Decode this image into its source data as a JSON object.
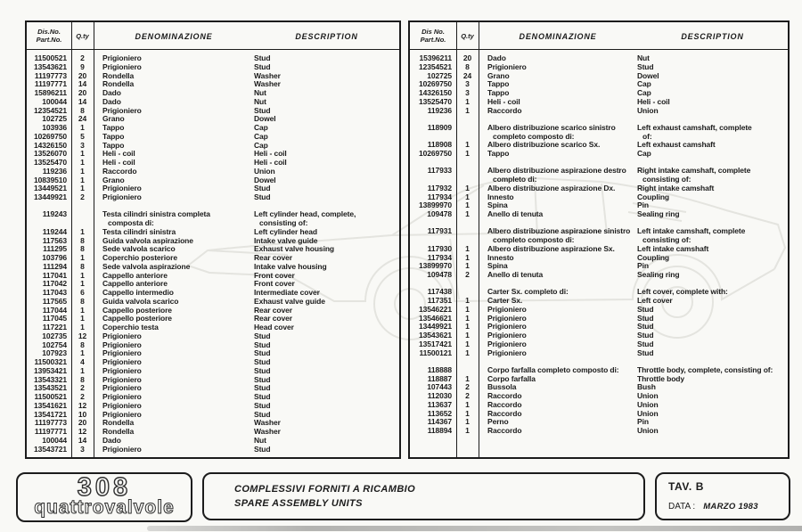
{
  "page": {
    "background": "#f9f9f6",
    "ink": "#1c1c1c",
    "watermark_color": "#e4e4df"
  },
  "tables": [
    {
      "id": "left",
      "header": {
        "no1": "Dis.No.",
        "no2": "Part.No.",
        "qty": "Q.ty",
        "den": "DENOMINAZIONE",
        "desc": "DESCRIPTION"
      },
      "rows": [
        {
          "t": "i",
          "no": "11500521",
          "q": "2",
          "d": "Prigioniero",
          "e": "Stud"
        },
        {
          "t": "i",
          "no": "13543621",
          "q": "9",
          "d": "Prigioniero",
          "e": "Stud"
        },
        {
          "t": "i",
          "no": "11197773",
          "q": "20",
          "d": "Rondella",
          "e": "Washer"
        },
        {
          "t": "i",
          "no": "11197771",
          "q": "14",
          "d": "Rondella",
          "e": "Washer"
        },
        {
          "t": "i",
          "no": "15896211",
          "q": "20",
          "d": "Dado",
          "e": "Nut"
        },
        {
          "t": "i",
          "no": "100044",
          "q": "14",
          "d": "Dado",
          "e": "Nut"
        },
        {
          "t": "i",
          "no": "12354521",
          "q": "8",
          "d": "Prigioniero",
          "e": "Stud"
        },
        {
          "t": "i",
          "no": "102725",
          "q": "24",
          "d": "Grano",
          "e": "Dowel"
        },
        {
          "t": "i",
          "no": "103936",
          "q": "1",
          "d": "Tappo",
          "e": "Cap"
        },
        {
          "t": "i",
          "no": "10269750",
          "q": "5",
          "d": "Tappo",
          "e": "Cap"
        },
        {
          "t": "i",
          "no": "14326150",
          "q": "3",
          "d": "Tappo",
          "e": "Cap"
        },
        {
          "t": "i",
          "no": "13526070",
          "q": "1",
          "d": "Heli - coil",
          "e": "Heli - coil"
        },
        {
          "t": "i",
          "no": "13525470",
          "q": "1",
          "d": "Heli - coil",
          "e": "Heli - coil"
        },
        {
          "t": "i",
          "no": "119236",
          "q": "1",
          "d": "Raccordo",
          "e": "Union"
        },
        {
          "t": "i",
          "no": "10839510",
          "q": "1",
          "d": "Grano",
          "e": "Dowel"
        },
        {
          "t": "i",
          "no": "13449521",
          "q": "1",
          "d": "Prigioniero",
          "e": "Stud"
        },
        {
          "t": "i",
          "no": "13449921",
          "q": "2",
          "d": "Prigioniero",
          "e": "Stud"
        },
        {
          "t": "s"
        },
        {
          "t": "g",
          "no": "119243",
          "d": [
            "Testa cilindri sinistra completa",
            "composta di:"
          ],
          "e": [
            "Left cylinder head, complete,",
            "consisting of:"
          ]
        },
        {
          "t": "i",
          "no": "119244",
          "q": "1",
          "d": "Testa cilindri sinistra",
          "e": "Left cylinder head"
        },
        {
          "t": "i",
          "no": "117563",
          "q": "8",
          "d": "Guida valvola aspirazione",
          "e": "Intake valve guide"
        },
        {
          "t": "i",
          "no": "111295",
          "q": "8",
          "d": "Sede valvola scarico",
          "e": "Exhaust valve housing"
        },
        {
          "t": "i",
          "no": "103796",
          "q": "1",
          "d": "Coperchio posteriore",
          "e": "Rear cover"
        },
        {
          "t": "i",
          "no": "111294",
          "q": "8",
          "d": "Sede valvola aspirazione",
          "e": "Intake valve housing"
        },
        {
          "t": "i",
          "no": "117041",
          "q": "1",
          "d": "Cappello anteriore",
          "e": "Front cover"
        },
        {
          "t": "i",
          "no": "117042",
          "q": "1",
          "d": "Cappello anteriore",
          "e": "Front cover"
        },
        {
          "t": "i",
          "no": "117043",
          "q": "6",
          "d": "Cappello intermedio",
          "e": "Intermediate cover"
        },
        {
          "t": "i",
          "no": "117565",
          "q": "8",
          "d": "Guida valvola scarico",
          "e": "Exhaust valve guide"
        },
        {
          "t": "i",
          "no": "117044",
          "q": "1",
          "d": "Cappello posteriore",
          "e": "Rear cover"
        },
        {
          "t": "i",
          "no": "117045",
          "q": "1",
          "d": "Cappello posteriore",
          "e": "Rear cover"
        },
        {
          "t": "i",
          "no": "117221",
          "q": "1",
          "d": "Coperchio testa",
          "e": "Head cover"
        },
        {
          "t": "i",
          "no": "102735",
          "q": "12",
          "d": "Prigioniero",
          "e": "Stud"
        },
        {
          "t": "i",
          "no": "102754",
          "q": "8",
          "d": "Prigioniero",
          "e": "Stud"
        },
        {
          "t": "i",
          "no": "107923",
          "q": "1",
          "d": "Prigioniero",
          "e": "Stud"
        },
        {
          "t": "i",
          "no": "11500321",
          "q": "4",
          "d": "Prigioniero",
          "e": "Stud"
        },
        {
          "t": "i",
          "no": "13953421",
          "q": "1",
          "d": "Prigioniero",
          "e": "Stud"
        },
        {
          "t": "i",
          "no": "13543321",
          "q": "8",
          "d": "Prigioniero",
          "e": "Stud"
        },
        {
          "t": "i",
          "no": "13543521",
          "q": "2",
          "d": "Prigioniero",
          "e": "Stud"
        },
        {
          "t": "i",
          "no": "11500521",
          "q": "2",
          "d": "Prigioniero",
          "e": "Stud"
        },
        {
          "t": "i",
          "no": "13541621",
          "q": "12",
          "d": "Prigioniero",
          "e": "Stud"
        },
        {
          "t": "i",
          "no": "13541721",
          "q": "10",
          "d": "Prigioniero",
          "e": "Stud"
        },
        {
          "t": "i",
          "no": "11197773",
          "q": "20",
          "d": "Rondella",
          "e": "Washer"
        },
        {
          "t": "i",
          "no": "11197771",
          "q": "12",
          "d": "Rondella",
          "e": "Washer"
        },
        {
          "t": "i",
          "no": "100044",
          "q": "14",
          "d": "Dado",
          "e": "Nut"
        },
        {
          "t": "i",
          "no": "13543721",
          "q": "3",
          "d": "Prigioniero",
          "e": "Stud"
        }
      ]
    },
    {
      "id": "right",
      "header": {
        "no1": "Dis No.",
        "no2": "Part.No.",
        "qty": "Q.ty",
        "den": "DENOMINAZIONE",
        "desc": "DESCRIPTION"
      },
      "rows": [
        {
          "t": "i",
          "no": "15396211",
          "q": "20",
          "d": "Dado",
          "e": "Nut"
        },
        {
          "t": "i",
          "no": "12354521",
          "q": "8",
          "d": "Prigioniero",
          "e": "Stud"
        },
        {
          "t": "i",
          "no": "102725",
          "q": "24",
          "d": "Grano",
          "e": "Dowel"
        },
        {
          "t": "i",
          "no": "10269750",
          "q": "3",
          "d": "Tappo",
          "e": "Cap"
        },
        {
          "t": "i",
          "no": "14326150",
          "q": "3",
          "d": "Tappo",
          "e": "Cap"
        },
        {
          "t": "i",
          "no": "13525470",
          "q": "1",
          "d": "Heli - coil",
          "e": "Heli - coil"
        },
        {
          "t": "i",
          "no": "119236",
          "q": "1",
          "d": "Raccordo",
          "e": "Union"
        },
        {
          "t": "s"
        },
        {
          "t": "g",
          "no": "118909",
          "d": [
            "Albero distribuzione scarico sinistro",
            "completo composto di:"
          ],
          "e": [
            "Left exhaust camshaft, complete",
            "of:"
          ]
        },
        {
          "t": "i",
          "no": "118908",
          "q": "1",
          "d": "Albero distribuzione scarico Sx.",
          "e": "Left exhaust camshaft"
        },
        {
          "t": "i",
          "no": "10269750",
          "q": "1",
          "d": "Tappo",
          "e": "Cap"
        },
        {
          "t": "s"
        },
        {
          "t": "g",
          "no": "117933",
          "d": [
            "Albero distribuzione aspirazione destro",
            "completo di:"
          ],
          "e": [
            "Right intake camshaft, complete",
            "consisting of:"
          ]
        },
        {
          "t": "i",
          "no": "117932",
          "q": "1",
          "d": "Albero distribuzione aspirazione Dx.",
          "e": "Right intake camshaft"
        },
        {
          "t": "i",
          "no": "117934",
          "q": "1",
          "d": "Innesto",
          "e": "Coupling"
        },
        {
          "t": "i",
          "no": "13899970",
          "q": "1",
          "d": "Spina",
          "e": "Pin"
        },
        {
          "t": "i",
          "no": "109478",
          "q": "1",
          "d": "Anello di tenuta",
          "e": "Sealing ring"
        },
        {
          "t": "s"
        },
        {
          "t": "g",
          "no": "117931",
          "d": [
            "Albero distribuzione aspirazione sinistro",
            "completo composto di:"
          ],
          "e": [
            "Left intake camshaft, complete",
            "consisting of:"
          ]
        },
        {
          "t": "i",
          "no": "117930",
          "q": "1",
          "d": "Albero distribuzione aspirazione Sx.",
          "e": "Left intake camshaft"
        },
        {
          "t": "i",
          "no": "117934",
          "q": "1",
          "d": "Innesto",
          "e": "Coupling"
        },
        {
          "t": "i",
          "no": "13899970",
          "q": "1",
          "d": "Spina",
          "e": "Pin"
        },
        {
          "t": "i",
          "no": "109478",
          "q": "2",
          "d": "Anello di tenuta",
          "e": "Sealing ring"
        },
        {
          "t": "s"
        },
        {
          "t": "g",
          "no": "117438",
          "d": [
            "Carter Sx. completo di:"
          ],
          "e": [
            "Left cover, complete with:"
          ]
        },
        {
          "t": "i",
          "no": "117351",
          "q": "1",
          "d": "Carter Sx.",
          "e": "Left cover"
        },
        {
          "t": "i",
          "no": "13546221",
          "q": "1",
          "d": "Prigioniero",
          "e": "Stud"
        },
        {
          "t": "i",
          "no": "13546621",
          "q": "1",
          "d": "Prigioniero",
          "e": "Stud"
        },
        {
          "t": "i",
          "no": "13449921",
          "q": "1",
          "d": "Prigioniero",
          "e": "Stud"
        },
        {
          "t": "i",
          "no": "13543621",
          "q": "1",
          "d": "Prigioniero",
          "e": "Stud"
        },
        {
          "t": "i",
          "no": "13517421",
          "q": "1",
          "d": "Prigioniero",
          "e": "Stud"
        },
        {
          "t": "i",
          "no": "11500121",
          "q": "1",
          "d": "Prigioniero",
          "e": "Stud"
        },
        {
          "t": "s"
        },
        {
          "t": "g",
          "no": "118888",
          "d": [
            "Corpo farfalla completo composto di:"
          ],
          "e": [
            "Throttle body, complete, consisting of:"
          ]
        },
        {
          "t": "i",
          "no": "118887",
          "q": "1",
          "d": "Corpo farfalla",
          "e": "Throttle body"
        },
        {
          "t": "i",
          "no": "107443",
          "q": "2",
          "d": "Bussola",
          "e": "Bush"
        },
        {
          "t": "i",
          "no": "112030",
          "q": "2",
          "d": "Raccordo",
          "e": "Union"
        },
        {
          "t": "i",
          "no": "113637",
          "q": "1",
          "d": "Raccordo",
          "e": "Union"
        },
        {
          "t": "i",
          "no": "113652",
          "q": "1",
          "d": "Raccordo",
          "e": "Union"
        },
        {
          "t": "i",
          "no": "114367",
          "q": "1",
          "d": "Perno",
          "e": "Pin"
        },
        {
          "t": "i",
          "no": "118894",
          "q": "1",
          "d": "Raccordo",
          "e": "Union"
        }
      ]
    }
  ],
  "footer": {
    "logo_model": "308",
    "logo_name": "quattrovalvole",
    "title_it": "COMPLESSIVI FORNITI A RICAMBIO",
    "title_en": "SPARE  ASSEMBLY UNITS",
    "plate_label": "TAV. B",
    "date_label": "DATA :",
    "date_value": "MARZO 1983"
  }
}
